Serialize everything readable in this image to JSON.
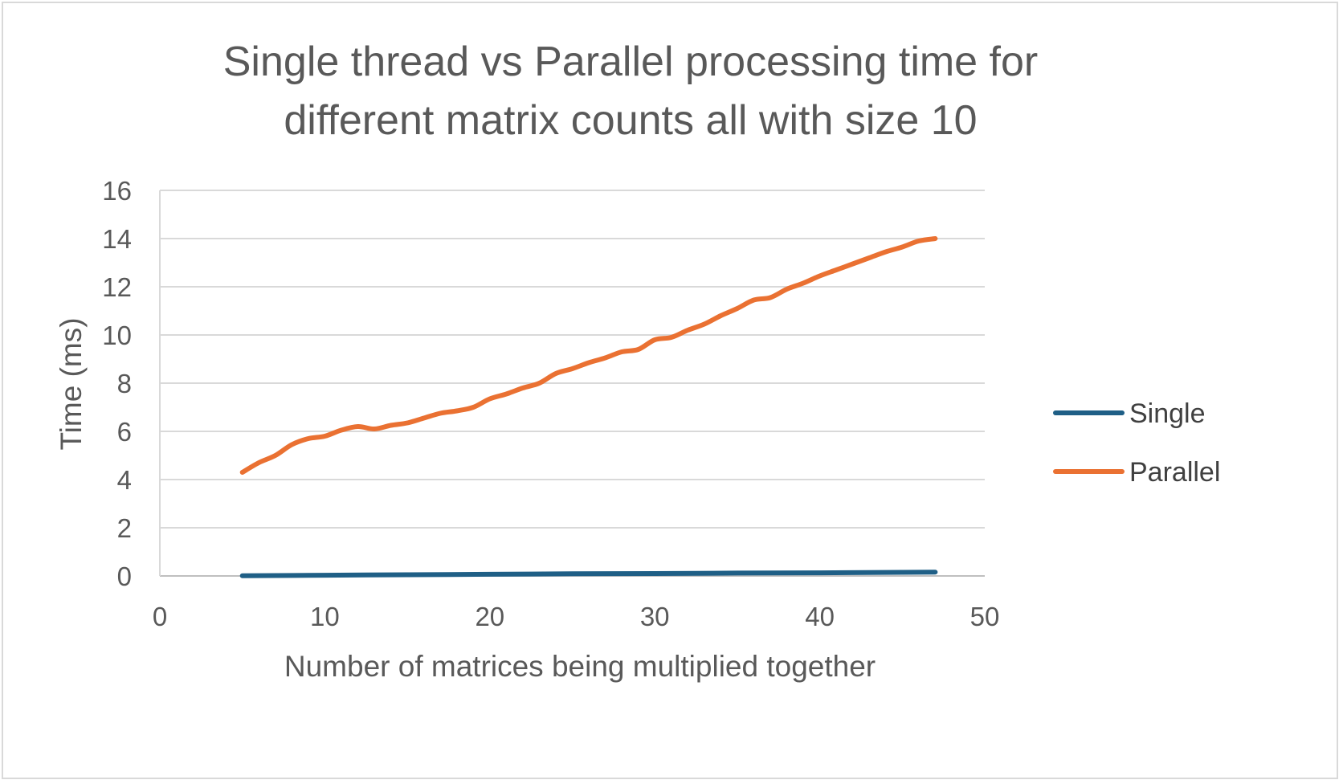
{
  "chart_data": {
    "type": "line",
    "title_lines": [
      "Single thread vs Parallel processing time for",
      "different matrix counts all with size 10"
    ],
    "xlabel": "Number of matrices being multiplied together",
    "ylabel": "Time (ms)",
    "xlim": [
      0,
      50
    ],
    "ylim": [
      0,
      16
    ],
    "xticks": [
      "0",
      "10",
      "20",
      "30",
      "40",
      "50"
    ],
    "yticks": [
      "0",
      "2",
      "4",
      "6",
      "8",
      "10",
      "12",
      "14",
      "16"
    ],
    "grid": true,
    "legend_position": "right",
    "series": [
      {
        "name": "Single",
        "color": "#1f5f86",
        "x": [
          5,
          10,
          15,
          20,
          25,
          30,
          35,
          40,
          45,
          47
        ],
        "y": [
          0.01,
          0.03,
          0.05,
          0.07,
          0.09,
          0.1,
          0.12,
          0.13,
          0.15,
          0.16
        ]
      },
      {
        "name": "Parallel",
        "color": "#ea7132",
        "x": [
          5,
          6,
          7,
          8,
          9,
          10,
          11,
          12,
          13,
          14,
          15,
          16,
          17,
          18,
          19,
          20,
          21,
          22,
          23,
          24,
          25,
          26,
          27,
          28,
          29,
          30,
          31,
          32,
          33,
          34,
          35,
          36,
          37,
          38,
          39,
          40,
          41,
          42,
          43,
          44,
          45,
          46,
          47
        ],
        "y": [
          4.3,
          4.7,
          5.0,
          5.45,
          5.7,
          5.8,
          6.05,
          6.2,
          6.1,
          6.25,
          6.35,
          6.55,
          6.75,
          6.85,
          7.0,
          7.35,
          7.55,
          7.8,
          8.0,
          8.4,
          8.6,
          8.85,
          9.05,
          9.3,
          9.4,
          9.8,
          9.9,
          10.2,
          10.45,
          10.8,
          11.1,
          11.45,
          11.55,
          11.9,
          12.15,
          12.45,
          12.7,
          12.95,
          13.2,
          13.45,
          13.65,
          13.9,
          14.0
        ]
      }
    ]
  }
}
